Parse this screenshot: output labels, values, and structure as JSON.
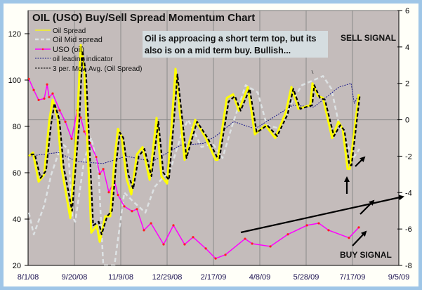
{
  "chart_data": {
    "type": "line",
    "title": "OIL (USO) Buy/Sell Spread Momentum Chart",
    "x_unit": "days since 8/1/08",
    "x_tick_labels": [
      "8/1/08",
      "9/20/08",
      "11/9/08",
      "12/29/08",
      "2/17/09",
      "4/8/09",
      "5/28/09",
      "7/17/09",
      "9/5/09"
    ],
    "x_tick_days": [
      0,
      50,
      100,
      150,
      200,
      250,
      300,
      350,
      400
    ],
    "xlim": [
      0,
      400
    ],
    "y_left": {
      "ylim": [
        20,
        120
      ],
      "ticks": [
        20,
        40,
        60,
        80,
        100,
        120
      ]
    },
    "y_right": {
      "ylim": [
        -8,
        6
      ],
      "ticks": [
        -8,
        -6,
        -4,
        -2,
        0,
        2,
        4,
        6
      ]
    },
    "grid": true,
    "legend_position": "top-left",
    "series": [
      {
        "name": "Oil Spread",
        "axis": "right",
        "color": "#ffff00",
        "style": "solid",
        "points": [
          [
            0.8,
            -2.0
          ],
          [
            5.3,
            -1.8
          ],
          [
            11.4,
            -3.4
          ],
          [
            17.4,
            -3.0
          ],
          [
            22.7,
            -0.1
          ],
          [
            26.5,
            1.1
          ],
          [
            31.8,
            0.1
          ],
          [
            36.4,
            -2.7
          ],
          [
            45.5,
            -5.4
          ],
          [
            53,
            -0.1
          ],
          [
            56.8,
            4.1
          ],
          [
            60.6,
            2.8
          ],
          [
            68.2,
            -6.2
          ],
          [
            74.2,
            -5.8
          ],
          [
            77.3,
            -6.7
          ],
          [
            83.3,
            -5.3
          ],
          [
            88.6,
            -5.3
          ],
          [
            93.2,
            -2.2
          ],
          [
            97,
            -0.5
          ],
          [
            100.8,
            -0.9
          ],
          [
            106.1,
            -3.2
          ],
          [
            111.4,
            -4.1
          ],
          [
            117.4,
            -1.9
          ],
          [
            123.5,
            -1.5
          ],
          [
            131.1,
            -3.3
          ],
          [
            138.6,
            0.1
          ],
          [
            143.9,
            -3.1
          ],
          [
            150,
            -3.5
          ],
          [
            155.3,
            0
          ],
          [
            159.1,
            2.8
          ],
          [
            168.9,
            -2.2
          ],
          [
            180.3,
            0
          ],
          [
            191.7,
            -1.0
          ],
          [
            202.3,
            -2.2
          ],
          [
            204.5,
            -2.2
          ],
          [
            214.4,
            1.2
          ],
          [
            221.2,
            1.4
          ],
          [
            227.3,
            0.5
          ],
          [
            237.1,
            1.8
          ],
          [
            244.7,
            -0.8
          ],
          [
            256.1,
            -0.3
          ],
          [
            266.7,
            -1.0
          ],
          [
            278,
            0.4
          ],
          [
            284.1,
            1.8
          ],
          [
            291.7,
            0.6
          ],
          [
            304.5,
            0.8
          ],
          [
            306.8,
            2.0
          ],
          [
            312.9,
            1.3
          ],
          [
            318.2,
            1.2
          ],
          [
            328,
            -1.0
          ],
          [
            334.8,
            -0.1
          ],
          [
            339.4,
            -0.5
          ],
          [
            344.7,
            -2.7
          ],
          [
            347,
            -2.7
          ],
          [
            356.8,
            1.4
          ]
        ]
      },
      {
        "name": "Oil Mid spread",
        "axis": "right",
        "color": "#dde2e4",
        "style": "dashed",
        "points": [
          [
            0.8,
            -5.1
          ],
          [
            6.1,
            -6.3
          ],
          [
            17.4,
            -4.7
          ],
          [
            25,
            -3.0
          ],
          [
            36.4,
            -1.3
          ],
          [
            43.2,
            -1.6
          ],
          [
            47.7,
            -5.3
          ],
          [
            50.8,
            -5.6
          ],
          [
            60.6,
            -2.2
          ],
          [
            68.2,
            -1.0
          ],
          [
            75.8,
            -2.7
          ],
          [
            81.1,
            -8
          ],
          [
            93.2,
            -8
          ],
          [
            103.8,
            -4.0
          ],
          [
            113.6,
            -4.5
          ],
          [
            126.5,
            -5.1
          ],
          [
            136.4,
            -3.7
          ],
          [
            153.8,
            -2.7
          ],
          [
            166.7,
            -0.6
          ],
          [
            172.7,
            0
          ],
          [
            187.1,
            -1.5
          ],
          [
            199.2,
            -1.3
          ],
          [
            209.8,
            -2.1
          ],
          [
            219.7,
            -0.4
          ],
          [
            234.8,
            1.9
          ],
          [
            247.7,
            1.5
          ],
          [
            257.6,
            -0.3
          ],
          [
            272.7,
            -0.5
          ],
          [
            285.6,
            1.1
          ],
          [
            295.5,
            1.9
          ],
          [
            318.2,
            2.4
          ],
          [
            327.3,
            1.7
          ],
          [
            334.8,
            -0.1
          ],
          [
            344.7,
            -1.4
          ],
          [
            350.8,
            -2.1
          ],
          [
            357.6,
            -1.6
          ]
        ]
      },
      {
        "name": "USO (oil)",
        "axis": "left",
        "color": "#ff00ff",
        "marker_color": "#ff2020",
        "style": "solid-markers",
        "points": [
          [
            0.8,
            100.5
          ],
          [
            6.1,
            95.7
          ],
          [
            11.4,
            91.4
          ],
          [
            17.4,
            92
          ],
          [
            20.5,
            98.1
          ],
          [
            22.7,
            92.6
          ],
          [
            26.5,
            94.2
          ],
          [
            34.1,
            86.9
          ],
          [
            40.2,
            82
          ],
          [
            47,
            74.7
          ],
          [
            53,
            86.9
          ],
          [
            56.8,
            83.8
          ],
          [
            60.6,
            77.8
          ],
          [
            66.7,
            72.9
          ],
          [
            73.5,
            66.8
          ],
          [
            77.3,
            59.5
          ],
          [
            81.1,
            61.6
          ],
          [
            87.1,
            51.6
          ],
          [
            93.2,
            56.5
          ],
          [
            97,
            50.4
          ],
          [
            103.8,
            45.5
          ],
          [
            112.1,
            43.4
          ],
          [
            117.4,
            44.3
          ],
          [
            125,
            35.2
          ],
          [
            132.6,
            38.2
          ],
          [
            146.2,
            29.1
          ],
          [
            156.8,
            37.3
          ],
          [
            168.9,
            29.1
          ],
          [
            178,
            32.2
          ],
          [
            191.7,
            27.3
          ],
          [
            202.3,
            23
          ],
          [
            212.9,
            24.6
          ],
          [
            234.1,
            31.5
          ],
          [
            241.7,
            29.4
          ],
          [
            261.4,
            28.2
          ],
          [
            280.3,
            33.4
          ],
          [
            300.8,
            37.3
          ],
          [
            313.6,
            38.2
          ],
          [
            324.2,
            35.2
          ],
          [
            346.2,
            31.9
          ],
          [
            356.8,
            36.4
          ]
        ]
      },
      {
        "name": "oil leading indicator",
        "axis": "right",
        "color": "#1a1a8a",
        "style": "dotted",
        "points": [
          [
            0.8,
            -2.0
          ],
          [
            32.6,
            -1.8
          ],
          [
            53,
            -2.3
          ],
          [
            81.1,
            -2.4
          ],
          [
            106.1,
            -2.0
          ],
          [
            134.1,
            -2.3
          ],
          [
            164.4,
            -1.4
          ],
          [
            189.4,
            -1.3
          ],
          [
            202.3,
            -0.9
          ],
          [
            222,
            -0.1
          ],
          [
            244.7,
            -0.5
          ],
          [
            285.6,
            0.8
          ],
          [
            308.3,
            0.7
          ],
          [
            335.6,
            1.8
          ],
          [
            348.5,
            2.0
          ],
          [
            352,
            0.9
          ],
          [
            356.1,
            1.3
          ]
        ]
      },
      {
        "name": "3 per. Mov. Avg. (Oil Spread)",
        "axis": "right",
        "color": "#000000",
        "style": "dashed",
        "points": [
          [
            2.8,
            -1.9
          ],
          [
            7.3,
            -1.9
          ],
          [
            13.4,
            -3.2
          ],
          [
            19.4,
            -2.8
          ],
          [
            24.7,
            -0.3
          ],
          [
            28.5,
            0.9
          ],
          [
            33.8,
            0.0
          ],
          [
            38.4,
            -2.6
          ],
          [
            47.5,
            -5.0
          ],
          [
            55,
            -0.3
          ],
          [
            58.8,
            3.8
          ],
          [
            62.6,
            2.5
          ],
          [
            70.2,
            -5.8
          ],
          [
            76.2,
            -5.6
          ],
          [
            79.3,
            -6.3
          ],
          [
            85.3,
            -5.3
          ],
          [
            90.6,
            -5.0
          ],
          [
            95.2,
            -2.3
          ],
          [
            99,
            -0.7
          ],
          [
            102.8,
            -1.0
          ],
          [
            108.1,
            -3.0
          ],
          [
            113.4,
            -3.8
          ],
          [
            119.4,
            -2.0
          ],
          [
            125.5,
            -1.6
          ],
          [
            133.1,
            -3.1
          ],
          [
            140.6,
            -0.1
          ],
          [
            145.9,
            -2.9
          ],
          [
            152,
            -3.3
          ],
          [
            157.3,
            -0.1
          ],
          [
            161.1,
            2.5
          ],
          [
            170.9,
            -2.1
          ],
          [
            182.3,
            -0.1
          ],
          [
            193.7,
            -1.0
          ],
          [
            204.3,
            -2.1
          ],
          [
            206.5,
            -2.1
          ],
          [
            216.4,
            1.0
          ],
          [
            223.2,
            1.3
          ],
          [
            229.3,
            0.5
          ],
          [
            239.1,
            1.7
          ],
          [
            246.7,
            -0.7
          ],
          [
            258.1,
            -0.3
          ],
          [
            268.7,
            -0.9
          ],
          [
            280,
            0.3
          ],
          [
            286.1,
            1.7
          ],
          [
            293.7,
            0.6
          ],
          [
            306.5,
            0.8
          ],
          [
            308.8,
            1.9
          ],
          [
            314.9,
            1.2
          ],
          [
            320.2,
            1.1
          ],
          [
            330,
            -0.9
          ],
          [
            336.8,
            -0.3
          ],
          [
            341.4,
            -0.6
          ],
          [
            346.7,
            -2.5
          ],
          [
            349,
            -2.5
          ],
          [
            357.8,
            1.3
          ]
        ]
      }
    ],
    "legend": [
      "Oil Spread",
      "Oil Mid spread",
      "USO (oil)",
      "oil leading indicator",
      "3 per. Mov. Avg. (Oil Spread)"
    ],
    "annotations": {
      "note_line1": "Oil is approacing a short term top, but its",
      "note_line2": "also is on a mid term buy.  Bullish...",
      "sell": "SELL SIGNAL",
      "buy": "BUY SIGNAL"
    }
  }
}
